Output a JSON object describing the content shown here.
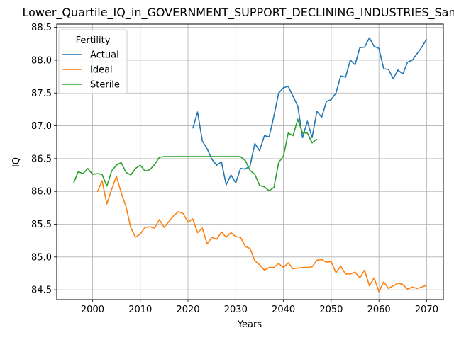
{
  "chart_data": {
    "type": "line",
    "title": "Lower_Quartile_IQ_in_GOVERNMENT_SUPPORT_DECLINING_INDUSTRIES_Sample",
    "xlabel": "Years",
    "ylabel": "IQ",
    "xlim": [
      1992.5,
      2073.5
    ],
    "ylim": [
      84.35,
      88.55
    ],
    "xticks": [
      2000,
      2010,
      2020,
      2030,
      2040,
      2050,
      2060,
      2070
    ],
    "yticks": [
      84.5,
      85.0,
      85.5,
      86.0,
      86.5,
      87.0,
      87.5,
      88.0,
      88.5
    ],
    "grid": true,
    "legend": {
      "title": "Fertility",
      "placement": "top-left"
    },
    "series": [
      {
        "name": "Actual",
        "color": "#1f77b4",
        "x": [
          2021,
          2022,
          2023,
          2024,
          2025,
          2026,
          2027,
          2028,
          2029,
          2030,
          2031,
          2032,
          2033,
          2034,
          2035,
          2036,
          2037,
          2038,
          2039,
          2040,
          2041,
          2042,
          2043,
          2044,
          2045,
          2046,
          2047,
          2048,
          2049,
          2050,
          2051,
          2052,
          2053,
          2054,
          2055,
          2056,
          2057,
          2058,
          2059,
          2060,
          2061,
          2062,
          2063,
          2064,
          2065,
          2066,
          2067,
          2068,
          2069,
          2070
        ],
        "y": [
          86.96,
          87.21,
          86.77,
          86.65,
          86.49,
          86.4,
          86.45,
          86.1,
          86.25,
          86.13,
          86.35,
          86.34,
          86.39,
          86.73,
          86.62,
          86.85,
          86.83,
          87.15,
          87.5,
          87.58,
          87.6,
          87.45,
          87.3,
          86.82,
          87.07,
          86.82,
          87.22,
          87.13,
          87.37,
          87.4,
          87.5,
          87.76,
          87.74,
          88.0,
          87.93,
          88.19,
          88.2,
          88.34,
          88.21,
          88.18,
          87.87,
          87.86,
          87.72,
          87.85,
          87.79,
          87.97,
          88.0,
          88.1,
          88.2,
          88.32
        ]
      },
      {
        "name": "Ideal",
        "color": "#ff7f0e",
        "x": [
          2001,
          2002,
          2003,
          2004,
          2005,
          2006,
          2007,
          2008,
          2009,
          2010,
          2011,
          2012,
          2013,
          2014,
          2015,
          2016,
          2017,
          2018,
          2019,
          2020,
          2021,
          2022,
          2023,
          2024,
          2025,
          2026,
          2027,
          2028,
          2029,
          2030,
          2031,
          2032,
          2033,
          2034,
          2035,
          2036,
          2037,
          2038,
          2039,
          2040,
          2041,
          2042,
          2043,
          2044,
          2045,
          2046,
          2047,
          2048,
          2049,
          2050,
          2051,
          2052,
          2053,
          2054,
          2055,
          2056,
          2057,
          2058,
          2059,
          2060,
          2061,
          2062,
          2063,
          2064,
          2065,
          2066,
          2067,
          2068,
          2069,
          2070
        ],
        "y": [
          85.99,
          86.16,
          85.81,
          86.03,
          86.23,
          85.98,
          85.77,
          85.45,
          85.3,
          85.35,
          85.45,
          85.46,
          85.44,
          85.57,
          85.45,
          85.54,
          85.63,
          85.69,
          85.66,
          85.53,
          85.58,
          85.37,
          85.44,
          85.2,
          85.3,
          85.27,
          85.38,
          85.3,
          85.37,
          85.31,
          85.3,
          85.16,
          85.13,
          84.94,
          84.88,
          84.8,
          84.84,
          84.84,
          84.9,
          84.84,
          84.91,
          84.82,
          84.83,
          84.84,
          84.84,
          84.85,
          84.95,
          84.96,
          84.92,
          84.93,
          84.76,
          84.86,
          84.74,
          84.74,
          84.77,
          84.68,
          84.8,
          84.56,
          84.68,
          84.47,
          84.62,
          84.52,
          84.56,
          84.6,
          84.58,
          84.51,
          84.54,
          84.52,
          84.54,
          84.57
        ]
      },
      {
        "name": "Sterile",
        "color": "#2ca02c",
        "x": [
          1996,
          1997,
          1998,
          1999,
          2000,
          2001,
          2002,
          2003,
          2004,
          2005,
          2006,
          2007,
          2008,
          2009,
          2010,
          2011,
          2012,
          2013,
          2014,
          2015,
          2016,
          2017,
          2018,
          2019,
          2020,
          2021,
          2022,
          2023,
          2024,
          2025,
          2026,
          2027,
          2028,
          2029,
          2030,
          2031,
          2032,
          2033,
          2034,
          2035,
          2036,
          2037,
          2038,
          2039,
          2040,
          2041,
          2042,
          2043,
          2044,
          2045,
          2046,
          2047
        ],
        "y": [
          86.12,
          86.3,
          86.27,
          86.35,
          86.26,
          86.27,
          86.26,
          86.08,
          86.31,
          86.4,
          86.44,
          86.29,
          86.25,
          86.35,
          86.4,
          86.31,
          86.33,
          86.41,
          86.52,
          86.53,
          86.53,
          86.53,
          86.53,
          86.53,
          86.53,
          86.53,
          86.53,
          86.53,
          86.53,
          86.53,
          86.53,
          86.53,
          86.53,
          86.53,
          86.53,
          86.53,
          86.47,
          86.32,
          86.26,
          86.09,
          86.07,
          86.01,
          86.06,
          86.44,
          86.54,
          86.89,
          86.85,
          87.1,
          86.89,
          86.89,
          86.74,
          86.8
        ]
      }
    ]
  }
}
